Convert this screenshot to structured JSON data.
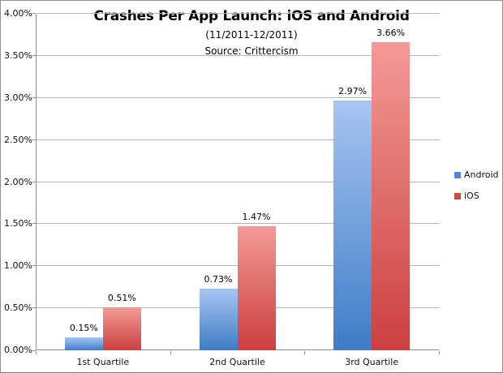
{
  "chart_data": {
    "type": "bar",
    "title": "Crashes Per App Launch: iOS and Android",
    "subtitle": "(11/2011-12/2011)",
    "source": "Source: Crittercism",
    "categories": [
      "1st Quartile",
      "2nd Quartile",
      "3rd Quartile"
    ],
    "series": [
      {
        "name": "Android",
        "values": [
          0.15,
          0.73,
          2.97
        ],
        "labels": [
          "0.15%",
          "0.73%",
          "2.97%"
        ],
        "color_top": "#a7c5f1",
        "color_bottom": "#3e7cc6",
        "legend_color": "#4f87d3"
      },
      {
        "name": "iOS",
        "values": [
          0.51,
          1.47,
          3.66
        ],
        "labels": [
          "0.51%",
          "1.47%",
          "3.66%"
        ],
        "color_top": "#f39a96",
        "color_bottom": "#cb403e",
        "legend_color": "#d74742"
      }
    ],
    "ylim": [
      0,
      4
    ],
    "ytick_step": 0.5,
    "ytick_labels": [
      "0.00%",
      "0.50%",
      "1.00%",
      "1.50%",
      "2.00%",
      "2.50%",
      "3.00%",
      "3.50%",
      "4.00%"
    ],
    "grid": true,
    "legend_position": "right"
  }
}
